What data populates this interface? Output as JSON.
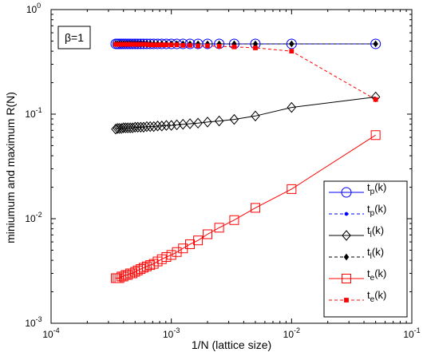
{
  "chart_data": {
    "type": "line",
    "xscale": "log",
    "yscale": "log",
    "xlim": [
      0.0001,
      0.1
    ],
    "ylim": [
      0.001,
      1
    ],
    "xlabel": "1/N (lattice size)",
    "ylabel": "miniumum and maximum R(N)",
    "annotation": "β=1",
    "x_ticks": [
      {
        "value": 0.0001,
        "base": "10",
        "exp": "-4"
      },
      {
        "value": 0.001,
        "base": "10",
        "exp": "-3"
      },
      {
        "value": 0.01,
        "base": "10",
        "exp": "-2"
      },
      {
        "value": 0.1,
        "base": "10",
        "exp": "-1"
      }
    ],
    "y_ticks": [
      {
        "value": 0.001,
        "base": "10",
        "exp": "-3"
      },
      {
        "value": 0.01,
        "base": "10",
        "exp": "-2"
      },
      {
        "value": 0.1,
        "base": "10",
        "exp": "-1"
      },
      {
        "value": 1,
        "base": "10",
        "exp": "0"
      }
    ],
    "legend_position": "bottom-right",
    "grid": false,
    "series": [
      {
        "name": "t_p(k)",
        "label_main": "t",
        "label_sub": "p",
        "label_tail": "(k)",
        "color": "#0000ff",
        "linestyle": "solid",
        "marker": "circle",
        "markersize": 12,
        "values": "tp_max"
      },
      {
        "name": "t_p(k)",
        "label_main": "t",
        "label_sub": "p",
        "label_tail": "(k)",
        "color": "#0000ff",
        "linestyle": "dashed",
        "marker": "dot",
        "markersize": 6,
        "values": "tp_min"
      },
      {
        "name": "t_l(k)",
        "label_main": "t",
        "label_sub": "l",
        "label_tail": "(k)",
        "color": "#000000",
        "linestyle": "solid",
        "marker": "diamond",
        "markersize": 12,
        "values": "tl_min"
      },
      {
        "name": "t_l(k)",
        "label_main": "t",
        "label_sub": "l",
        "label_tail": "(k)",
        "color": "#000000",
        "linestyle": "dashed",
        "marker": "filled-diamond",
        "markersize": 7,
        "values": "tl_max"
      },
      {
        "name": "t_e(k)",
        "label_main": "t",
        "label_sub": "e",
        "label_tail": "(k)",
        "color": "#ff0000",
        "linestyle": "solid",
        "marker": "square",
        "markersize": 11,
        "values": "te_min"
      },
      {
        "name": "t_e(k)",
        "label_main": "t",
        "label_sub": "e",
        "label_tail": "(k)",
        "color": "#ff0000",
        "linestyle": "dashed",
        "marker": "filled-square",
        "markersize": 6,
        "values": "te_max"
      }
    ],
    "x": [
      0.05,
      0.01,
      0.005,
      0.003333,
      0.0025,
      0.002,
      0.001667,
      0.001429,
      0.00125,
      0.001111,
      0.001,
      0.000909,
      0.000833,
      0.000769,
      0.000714,
      0.000667,
      0.000625,
      0.000588,
      0.000556,
      0.000526,
      0.0005,
      0.000476,
      0.000455,
      0.000435,
      0.000417,
      0.0004,
      0.000385,
      0.00037,
      0.000357,
      0.000345
    ],
    "data": {
      "tp_max": [
        0.47,
        0.47,
        0.47,
        0.47,
        0.47,
        0.47,
        0.47,
        0.47,
        0.47,
        0.47,
        0.47,
        0.47,
        0.47,
        0.47,
        0.47,
        0.47,
        0.47,
        0.47,
        0.47,
        0.47,
        0.47,
        0.47,
        0.47,
        0.47,
        0.47,
        0.47,
        0.47,
        0.47,
        0.47,
        0.47
      ],
      "tp_min": [
        0.47,
        0.47,
        0.47,
        0.47,
        0.47,
        0.47,
        0.47,
        0.47,
        0.47,
        0.47,
        0.47,
        0.47,
        0.47,
        0.47,
        0.47,
        0.47,
        0.47,
        0.47,
        0.47,
        0.47,
        0.47,
        0.47,
        0.47,
        0.47,
        0.47,
        0.47,
        0.47,
        0.47,
        0.47,
        0.47
      ],
      "tl_max": [
        0.47,
        0.47,
        0.47,
        0.47,
        0.47,
        0.47,
        0.47,
        0.47,
        0.47,
        0.47,
        0.47,
        0.47,
        0.47,
        0.47,
        0.47,
        0.47,
        0.47,
        0.47,
        0.47,
        0.47,
        0.47,
        0.47,
        0.47,
        0.47,
        0.47,
        0.47,
        0.47,
        0.47,
        0.47,
        0.47
      ],
      "tl_min": [
        0.146,
        0.116,
        0.096,
        0.089,
        0.086,
        0.084,
        0.082,
        0.081,
        0.08,
        0.079,
        0.078,
        0.078,
        0.077,
        0.077,
        0.076,
        0.076,
        0.076,
        0.075,
        0.075,
        0.075,
        0.075,
        0.074,
        0.074,
        0.074,
        0.074,
        0.074,
        0.073,
        0.073,
        0.073,
        0.072
      ],
      "te_max": [
        0.138,
        0.4,
        0.43,
        0.44,
        0.445,
        0.45,
        0.45,
        0.455,
        0.455,
        0.46,
        0.46,
        0.46,
        0.46,
        0.46,
        0.46,
        0.46,
        0.465,
        0.465,
        0.465,
        0.465,
        0.465,
        0.465,
        0.465,
        0.465,
        0.465,
        0.465,
        0.465,
        0.465,
        0.465,
        0.465
      ],
      "te_min": [
        0.063,
        0.0192,
        0.0127,
        0.0097,
        0.0082,
        0.0071,
        0.0062,
        0.0057,
        0.0052,
        0.0048,
        0.0045,
        0.0043,
        0.0041,
        0.0039,
        0.0037,
        0.0036,
        0.0035,
        0.0034,
        0.0033,
        0.0032,
        0.0031,
        0.003,
        0.003,
        0.0029,
        0.0029,
        0.0028,
        0.0028,
        0.0027,
        0.0027,
        0.0027
      ]
    }
  }
}
